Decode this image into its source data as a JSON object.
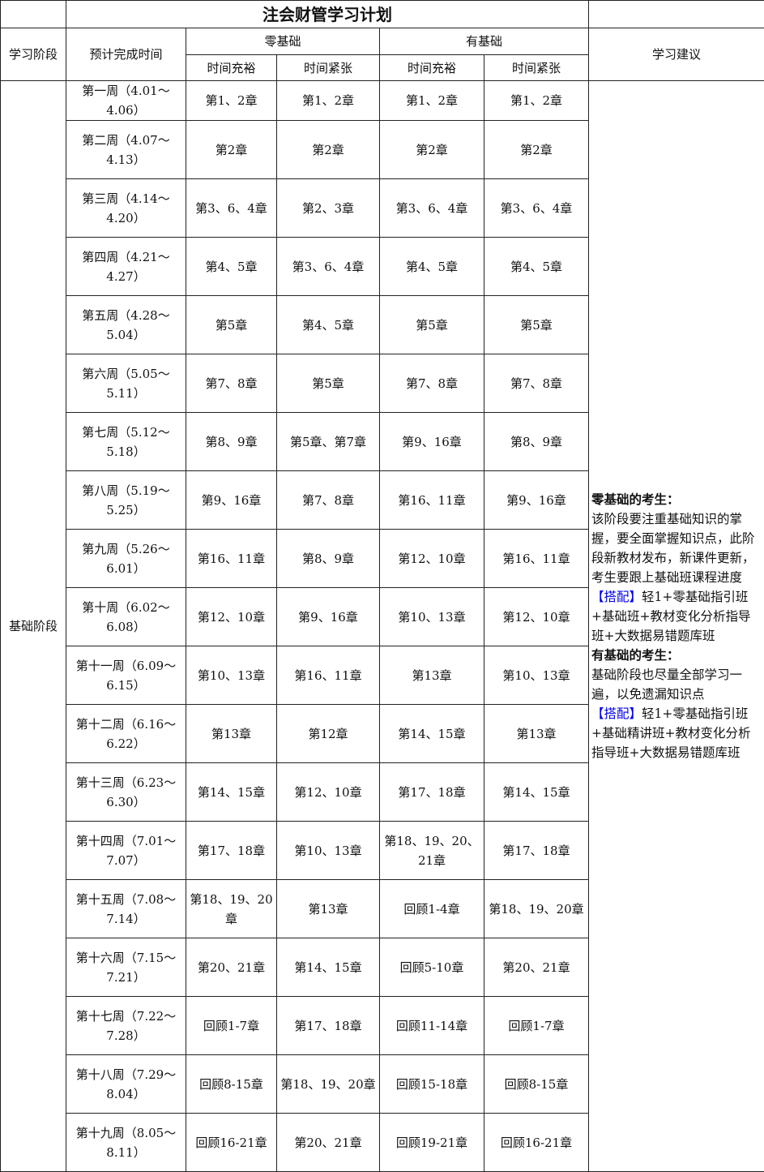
{
  "title": "注会财管学习计划",
  "headers": {
    "stage": "学习阶段",
    "time": "预计完成时间",
    "zero_basis": "零基础",
    "has_basis": "有基础",
    "ample": "时间充裕",
    "tight": "时间紧张",
    "advice": "学习建议"
  },
  "stage_label": "基础阶段",
  "rows": [
    {
      "week": "第一周（4.01～4.06）",
      "c": [
        "第1、2章",
        "第1、2章",
        "第1、2章",
        "第1、2章"
      ]
    },
    {
      "week": "第二周（4.07～4.13）",
      "c": [
        "第2章",
        "第2章",
        "第2章",
        "第2章"
      ]
    },
    {
      "week": "第三周（4.14～4.20）",
      "c": [
        "第3、6、4章",
        "第2、3章",
        "第3、6、4章",
        "第3、6、4章"
      ]
    },
    {
      "week": "第四周（4.21～4.27）",
      "c": [
        "第4、5章",
        "第3、6、4章",
        "第4、5章",
        "第4、5章"
      ]
    },
    {
      "week": "第五周（4.28～5.04）",
      "c": [
        "第5章",
        "第4、5章",
        "第5章",
        "第5章"
      ]
    },
    {
      "week": "第六周（5.05～5.11）",
      "c": [
        "第7、8章",
        "第5章",
        "第7、8章",
        "第7、8章"
      ]
    },
    {
      "week": "第七周（5.12～5.18）",
      "c": [
        "第8、9章",
        "第5章、第7章",
        "第9、16章",
        "第8、9章"
      ]
    },
    {
      "week": "第八周（5.19～5.25）",
      "c": [
        "第9、16章",
        "第7、8章",
        "第16、11章",
        "第9、16章"
      ]
    },
    {
      "week": "第九周（5.26～6.01）",
      "c": [
        "第16、11章",
        "第8、9章",
        "第12、10章",
        "第16、11章"
      ]
    },
    {
      "week": "第十周（6.02～6.08）",
      "c": [
        "第12、10章",
        "第9、16章",
        "第10、13章",
        "第12、10章"
      ]
    },
    {
      "week": "第十一周（6.09～6.15）",
      "c": [
        "第10、13章",
        "第16、11章",
        "第13章",
        "第10、13章"
      ]
    },
    {
      "week": "第十二周（6.16～6.22）",
      "c": [
        "第13章",
        "第12章",
        "第14、15章",
        "第13章"
      ]
    },
    {
      "week": "第十三周（6.23～6.30）",
      "c": [
        "第14、15章",
        "第12、10章",
        "第17、18章",
        "第14、15章"
      ]
    },
    {
      "week": "第十四周（7.01～7.07）",
      "c": [
        "第17、18章",
        "第10、13章",
        "第18、19、20、21章",
        "第17、18章"
      ]
    },
    {
      "week": "第十五周（7.08～7.14）",
      "c": [
        "第18、19、20章",
        "第13章",
        "回顾1-4章",
        "第18、19、20章"
      ]
    },
    {
      "week": "第十六周（7.15～7.21）",
      "c": [
        "第20、21章",
        "第14、15章",
        "回顾5-10章",
        "第20、21章"
      ]
    },
    {
      "week": "第十七周（7.22～7.28）",
      "c": [
        "回顾1-7章",
        "第17、18章",
        "回顾11-14章",
        "回顾1-7章"
      ]
    },
    {
      "week": "第十八周（7.29～8.04）",
      "c": [
        "回顾8-15章",
        "第18、19、20章",
        "回顾15-18章",
        "回顾8-15章"
      ]
    },
    {
      "week": "第十九周（8.05～8.11）",
      "c": [
        "回顾16-21章",
        "第20、21章",
        "回顾19-21章",
        "回顾16-21章"
      ]
    }
  ],
  "advice": {
    "zero_heading": "零基础的考生：",
    "zero_text": "该阶段要注重基础知识的掌握，要全面掌握知识点，此阶段新教材发布，新课件更新，考生要跟上基础班课程进度",
    "zero_tag": "【搭配】",
    "zero_combo": "轻1+零基础指引班+基础班+教材变化分析指导班+大数据易错题库班",
    "has_heading": "有基础的考生：",
    "has_text": "基础阶段也尽量全部学习一遍，以免遗漏知识点",
    "has_tag": "【搭配】",
    "has_combo": "轻1+零基础指引班+基础精讲班+教材变化分析指导班+大数据易错题库班"
  },
  "colors": {
    "border": "#222222",
    "tag": "#0000ee"
  }
}
